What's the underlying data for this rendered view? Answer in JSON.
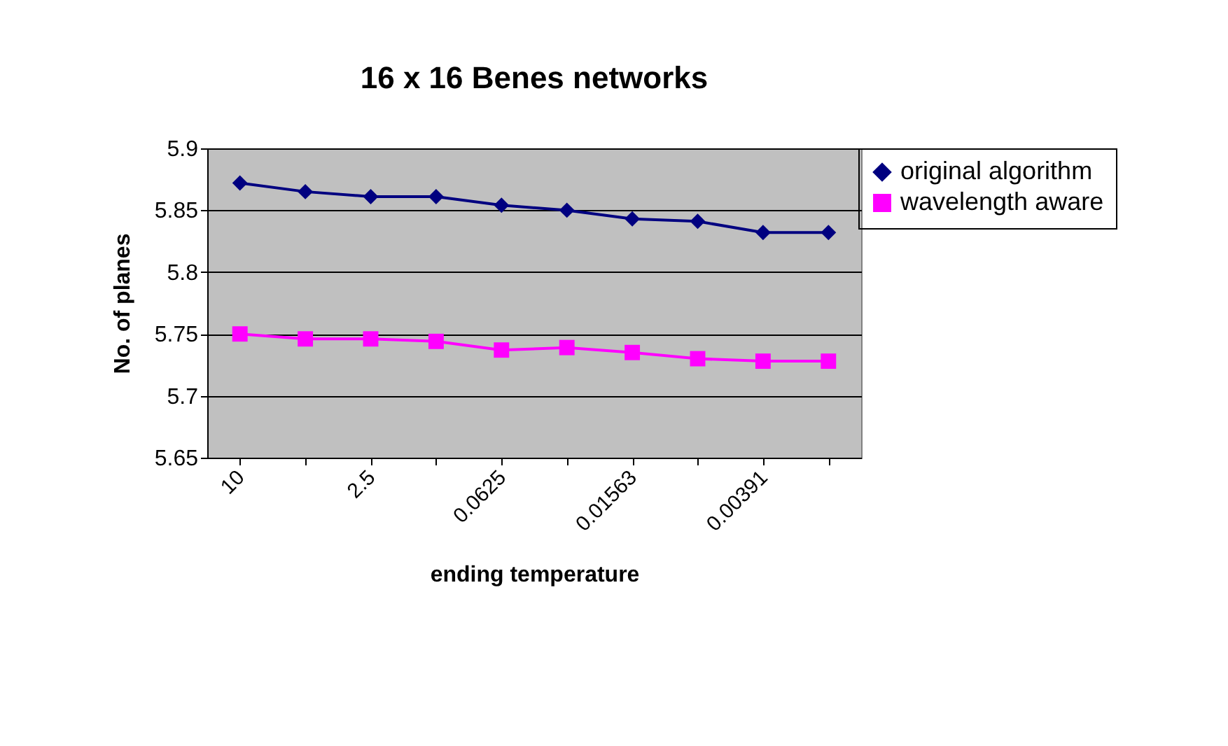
{
  "chart_data": {
    "type": "line",
    "title": "16 x 16 Benes networks",
    "xlabel": "ending temperature",
    "ylabel": "No. of planes",
    "categories": [
      "10",
      null,
      "2.5",
      null,
      "0.0625",
      null,
      "0.01563",
      null,
      "0.00391",
      null
    ],
    "series": [
      {
        "name": "original algorithm",
        "color": "#000080",
        "marker": "diamond",
        "values": [
          5.872,
          5.865,
          5.861,
          5.861,
          5.854,
          5.85,
          5.843,
          5.841,
          5.832,
          5.832
        ]
      },
      {
        "name": "wavelength aware",
        "color": "#ff00ff",
        "marker": "square",
        "values": [
          5.75,
          5.746,
          5.746,
          5.744,
          5.737,
          5.739,
          5.735,
          5.73,
          5.728,
          5.728
        ]
      }
    ],
    "ylim": [
      5.65,
      5.9
    ],
    "yticks": [
      5.65,
      5.7,
      5.75,
      5.8,
      5.85,
      5.9
    ],
    "grid": "y",
    "legend": "right"
  }
}
